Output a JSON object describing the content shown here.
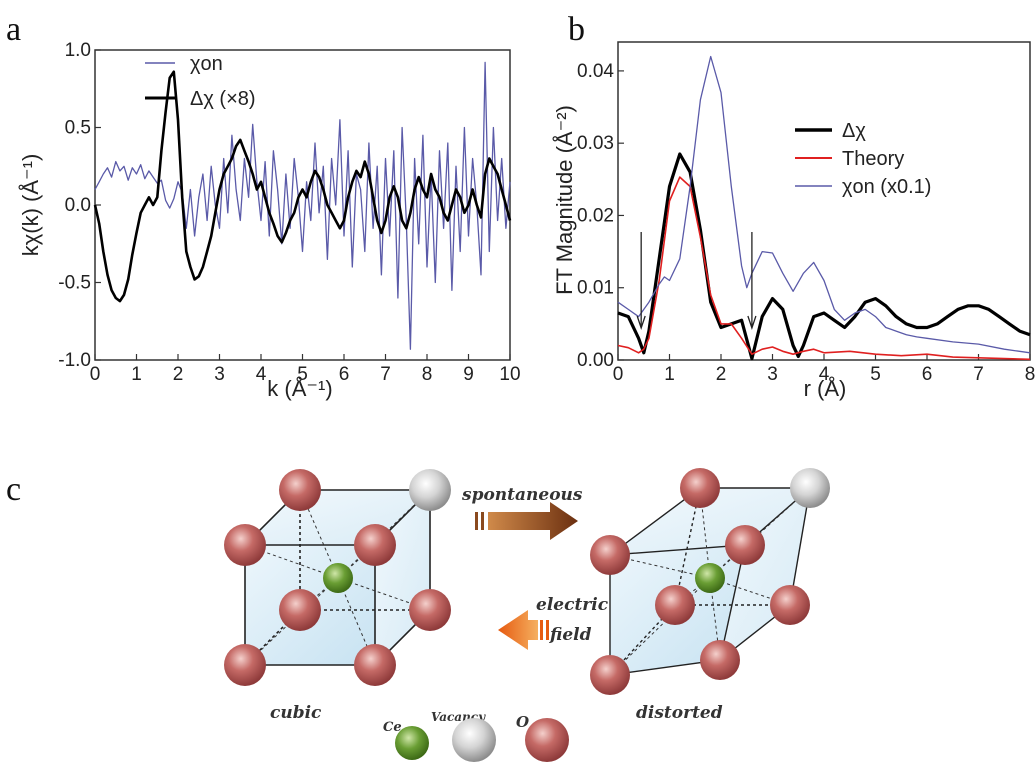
{
  "panels": {
    "a": "a",
    "b": "b",
    "c": "c"
  },
  "chart_data": [
    {
      "type": "line",
      "panel": "a",
      "xlabel": "k (Å⁻¹)",
      "ylabel": "kχ(k) (Å⁻¹)",
      "xlim": [
        0,
        10
      ],
      "ylim": [
        -1.0,
        1.0
      ],
      "xticks": [
        "0",
        "1",
        "2",
        "3",
        "4",
        "5",
        "6",
        "7",
        "8",
        "9",
        "10"
      ],
      "yticks": [
        "-1.0",
        "-0.5",
        "0.0",
        "0.5",
        "1.0"
      ],
      "legend_position": "top-left",
      "series": [
        {
          "name": "χon",
          "color": "#5a5aa8",
          "x": [
            0.0,
            0.1,
            0.2,
            0.3,
            0.4,
            0.5,
            0.6,
            0.7,
            0.8,
            0.9,
            1.0,
            1.1,
            1.2,
            1.3,
            1.4,
            1.5,
            1.6,
            1.7,
            1.8,
            1.9,
            2.0,
            2.1,
            2.2,
            2.3,
            2.4,
            2.5,
            2.6,
            2.7,
            2.8,
            2.9,
            3.0,
            3.1,
            3.2,
            3.3,
            3.4,
            3.5,
            3.6,
            3.7,
            3.8,
            3.9,
            4.0,
            4.1,
            4.2,
            4.3,
            4.4,
            4.5,
            4.6,
            4.7,
            4.8,
            4.9,
            5.0,
            5.1,
            5.2,
            5.3,
            5.4,
            5.5,
            5.6,
            5.7,
            5.8,
            5.9,
            6.0,
            6.1,
            6.2,
            6.3,
            6.4,
            6.5,
            6.6,
            6.7,
            6.8,
            6.9,
            7.0,
            7.1,
            7.2,
            7.3,
            7.4,
            7.5,
            7.6,
            7.7,
            7.8,
            7.9,
            8.0,
            8.1,
            8.2,
            8.3,
            8.4,
            8.5,
            8.6,
            8.7,
            8.8,
            8.9,
            9.0,
            9.1,
            9.2,
            9.3,
            9.4,
            9.5,
            9.6,
            9.7,
            9.8,
            9.9,
            10.0
          ],
          "y": [
            0.1,
            0.15,
            0.2,
            0.24,
            0.18,
            0.28,
            0.22,
            0.25,
            0.16,
            0.24,
            0.2,
            0.26,
            0.17,
            0.22,
            0.18,
            0.14,
            0.16,
            0.03,
            -0.02,
            0.04,
            0.15,
            0.08,
            -0.15,
            0.1,
            -0.2,
            0.05,
            0.2,
            -0.1,
            0.25,
            0.0,
            -0.15,
            0.3,
            -0.05,
            0.45,
            0.1,
            -0.1,
            0.3,
            0.05,
            0.52,
            0.15,
            -0.1,
            0.28,
            -0.2,
            0.35,
            0.1,
            -0.25,
            0.2,
            -0.15,
            0.3,
            0.05,
            -0.3,
            0.15,
            -0.1,
            0.4,
            -0.05,
            0.25,
            -0.35,
            0.3,
            0.0,
            0.55,
            -0.2,
            0.35,
            -0.4,
            0.2,
            0.1,
            -0.3,
            0.4,
            -0.15,
            0.25,
            -0.45,
            0.3,
            -0.2,
            0.35,
            -0.6,
            0.5,
            -0.1,
            -0.93,
            0.3,
            -0.25,
            0.45,
            -0.4,
            0.2,
            -0.5,
            0.35,
            -0.15,
            0.4,
            -0.55,
            0.25,
            -0.3,
            0.5,
            -0.2,
            0.3,
            0.0,
            -0.45,
            0.92,
            -0.3,
            0.5,
            -0.1,
            0.3,
            -0.15,
            0.15
          ]
        },
        {
          "name": "Δχ (×8)",
          "color": "#000000",
          "x": [
            0.0,
            0.1,
            0.2,
            0.3,
            0.4,
            0.5,
            0.6,
            0.7,
            0.8,
            0.9,
            1.0,
            1.1,
            1.2,
            1.3,
            1.4,
            1.5,
            1.6,
            1.7,
            1.8,
            1.9,
            2.0,
            2.1,
            2.2,
            2.3,
            2.4,
            2.5,
            2.6,
            2.7,
            2.8,
            2.9,
            3.0,
            3.1,
            3.2,
            3.3,
            3.4,
            3.5,
            3.6,
            3.7,
            3.8,
            3.9,
            4.0,
            4.1,
            4.2,
            4.3,
            4.4,
            4.5,
            4.6,
            4.7,
            4.8,
            4.9,
            5.0,
            5.1,
            5.2,
            5.3,
            5.4,
            5.5,
            5.6,
            5.7,
            5.8,
            5.9,
            6.0,
            6.1,
            6.2,
            6.3,
            6.4,
            6.5,
            6.6,
            6.7,
            6.8,
            6.9,
            7.0,
            7.1,
            7.2,
            7.3,
            7.4,
            7.5,
            7.6,
            7.7,
            7.8,
            7.9,
            8.0,
            8.1,
            8.2,
            8.3,
            8.4,
            8.5,
            8.6,
            8.7,
            8.8,
            8.9,
            9.0,
            9.1,
            9.2,
            9.3,
            9.4,
            9.5,
            9.6,
            9.7,
            9.8,
            9.9,
            10.0
          ],
          "y": [
            0.0,
            -0.12,
            -0.3,
            -0.45,
            -0.55,
            -0.6,
            -0.62,
            -0.58,
            -0.48,
            -0.32,
            -0.18,
            -0.05,
            0.0,
            0.05,
            0.0,
            0.05,
            0.35,
            0.6,
            0.82,
            0.86,
            0.55,
            0.05,
            -0.3,
            -0.4,
            -0.48,
            -0.46,
            -0.4,
            -0.3,
            -0.2,
            -0.05,
            0.1,
            0.2,
            0.25,
            0.3,
            0.38,
            0.42,
            0.35,
            0.28,
            0.2,
            0.1,
            0.15,
            0.05,
            -0.05,
            -0.12,
            -0.2,
            -0.24,
            -0.18,
            -0.1,
            -0.05,
            0.05,
            0.1,
            0.05,
            0.15,
            0.22,
            0.18,
            0.1,
            0.0,
            -0.05,
            -0.1,
            -0.15,
            -0.1,
            0.05,
            0.15,
            0.22,
            0.18,
            0.28,
            0.2,
            0.05,
            -0.1,
            -0.18,
            -0.1,
            0.05,
            0.12,
            0.05,
            -0.1,
            -0.15,
            -0.05,
            0.1,
            0.18,
            0.1,
            0.05,
            0.2,
            0.1,
            0.05,
            -0.05,
            -0.1,
            0.0,
            0.1,
            0.05,
            -0.05,
            0.0,
            0.1,
            0.0,
            -0.08,
            0.2,
            0.3,
            0.25,
            0.2,
            0.1,
            0.0,
            -0.1
          ]
        }
      ]
    },
    {
      "type": "line",
      "panel": "b",
      "xlabel": "r (Å)",
      "ylabel": "FT Magnitude (Å⁻²)",
      "xlim": [
        0,
        8
      ],
      "ylim": [
        0.0,
        0.044
      ],
      "xticks": [
        "0",
        "1",
        "2",
        "3",
        "4",
        "5",
        "6",
        "7",
        "8"
      ],
      "yticks": [
        "0.00",
        "0.01",
        "0.02",
        "0.03",
        "0.04"
      ],
      "legend_position": "top-right",
      "arrows_at_r": [
        0.45,
        2.6
      ],
      "series": [
        {
          "name": "Δχ",
          "color": "#000000",
          "x": [
            0.0,
            0.2,
            0.4,
            0.5,
            0.6,
            0.8,
            1.0,
            1.2,
            1.4,
            1.6,
            1.8,
            2.0,
            2.2,
            2.4,
            2.6,
            2.8,
            3.0,
            3.2,
            3.4,
            3.5,
            3.6,
            3.8,
            4.0,
            4.2,
            4.4,
            4.6,
            4.8,
            5.0,
            5.2,
            5.4,
            5.6,
            5.8,
            6.0,
            6.2,
            6.4,
            6.6,
            6.8,
            7.0,
            7.2,
            7.4,
            7.6,
            7.8,
            8.0
          ],
          "y": [
            0.0065,
            0.006,
            0.003,
            0.001,
            0.004,
            0.014,
            0.024,
            0.0285,
            0.026,
            0.018,
            0.008,
            0.0045,
            0.005,
            0.0055,
            0.0002,
            0.006,
            0.0085,
            0.007,
            0.002,
            0.0005,
            0.002,
            0.006,
            0.0065,
            0.0055,
            0.0045,
            0.006,
            0.008,
            0.0085,
            0.0075,
            0.006,
            0.005,
            0.0045,
            0.0045,
            0.005,
            0.006,
            0.007,
            0.0075,
            0.0075,
            0.007,
            0.006,
            0.005,
            0.004,
            0.0035
          ]
        },
        {
          "name": "Theory",
          "color": "#e02020",
          "x": [
            0.0,
            0.2,
            0.4,
            0.5,
            0.6,
            0.8,
            1.0,
            1.2,
            1.4,
            1.6,
            1.8,
            2.0,
            2.2,
            2.4,
            2.6,
            2.8,
            3.0,
            3.2,
            3.4,
            3.6,
            3.8,
            4.0,
            4.5,
            5.0,
            5.5,
            6.0,
            6.5,
            7.0,
            7.5,
            8.0
          ],
          "y": [
            0.002,
            0.0017,
            0.001,
            0.0015,
            0.003,
            0.011,
            0.022,
            0.0253,
            0.024,
            0.017,
            0.009,
            0.005,
            0.005,
            0.003,
            0.0008,
            0.0015,
            0.0018,
            0.0012,
            0.0008,
            0.0012,
            0.0015,
            0.001,
            0.0012,
            0.0008,
            0.0006,
            0.0008,
            0.0004,
            0.0003,
            0.0002,
            0.0001
          ]
        },
        {
          "name": "χon (x0.1)",
          "color": "#5a5aa8",
          "x": [
            0.0,
            0.2,
            0.4,
            0.6,
            0.8,
            0.9,
            1.0,
            1.2,
            1.4,
            1.6,
            1.8,
            2.0,
            2.2,
            2.4,
            2.5,
            2.6,
            2.8,
            3.0,
            3.2,
            3.4,
            3.6,
            3.8,
            4.0,
            4.2,
            4.4,
            4.6,
            4.8,
            5.0,
            5.2,
            5.4,
            5.6,
            5.8,
            6.0,
            6.5,
            7.0,
            7.5,
            8.0
          ],
          "y": [
            0.008,
            0.007,
            0.006,
            0.008,
            0.0105,
            0.0115,
            0.011,
            0.014,
            0.024,
            0.036,
            0.042,
            0.037,
            0.024,
            0.013,
            0.01,
            0.012,
            0.015,
            0.0148,
            0.012,
            0.0095,
            0.012,
            0.0135,
            0.011,
            0.007,
            0.0055,
            0.0065,
            0.007,
            0.006,
            0.0045,
            0.004,
            0.0035,
            0.0032,
            0.003,
            0.0025,
            0.0022,
            0.0015,
            0.001
          ]
        }
      ]
    }
  ],
  "diagram": {
    "arrow_top_label": "spontaneous",
    "arrow_bottom_label_1": "electric",
    "arrow_bottom_label_2": "field",
    "left_label": "cubic",
    "right_label": "distorted",
    "legend": {
      "ce": "Ce",
      "vacancy": "Vacancy",
      "o": "O"
    },
    "colors": {
      "o_atom": "#c06060",
      "ce_atom": "#5a8f2a",
      "vacancy": "#cfcfcf",
      "arrow_top": "#8a4a1f",
      "arrow_bottom": "#f07a20",
      "cube_fill": "#d9ecf6"
    }
  }
}
